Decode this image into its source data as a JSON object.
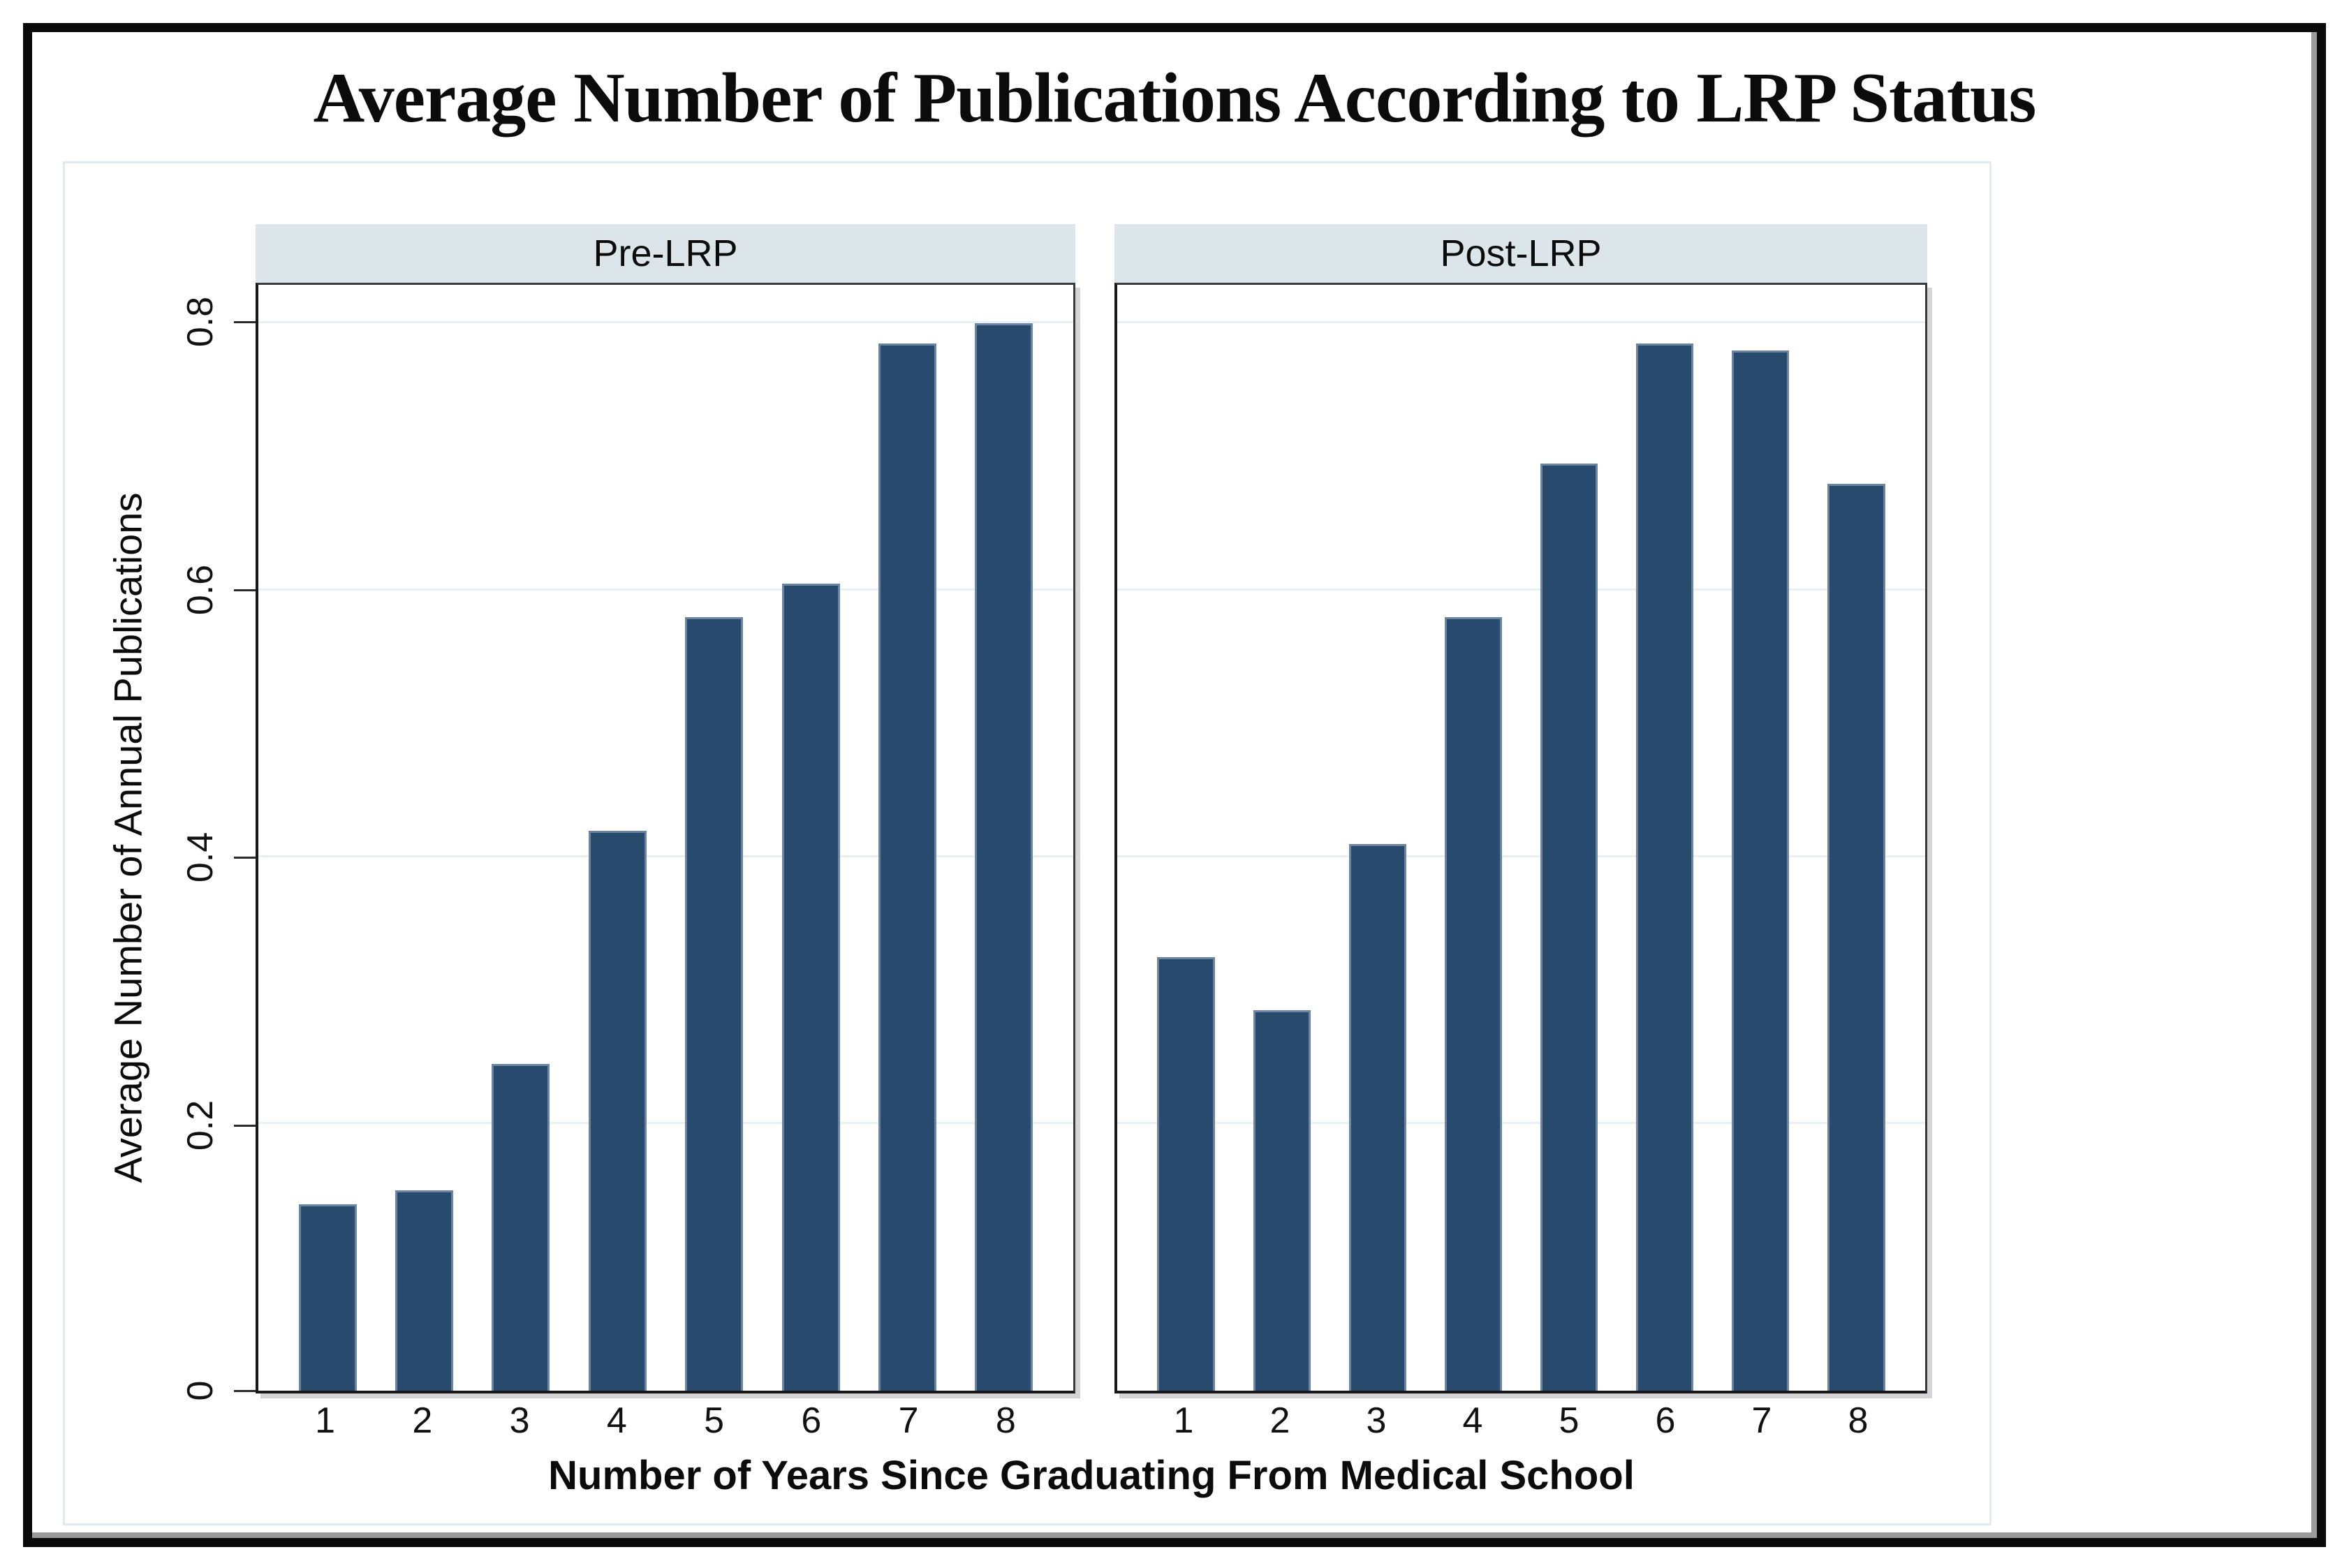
{
  "figure": {
    "title": "Average Number of Publications According to LRP Status"
  },
  "chart_data": {
    "type": "bar",
    "title": "Average Number of Publications According to LRP Status",
    "xlabel": "Number of Years Since Graduating From Medical School",
    "ylabel": "Average Number of Annual Publications",
    "categories": [
      "1",
      "2",
      "3",
      "4",
      "5",
      "6",
      "7",
      "8"
    ],
    "panels": [
      {
        "label": "Pre-LRP",
        "values": [
          0.14,
          0.15,
          0.245,
          0.42,
          0.58,
          0.605,
          0.785,
          0.8
        ]
      },
      {
        "label": "Post-LRP",
        "values": [
          0.325,
          0.285,
          0.41,
          0.58,
          0.695,
          0.785,
          0.78,
          0.68
        ]
      }
    ],
    "y_ticks": [
      {
        "value": 0.0,
        "label": "0"
      },
      {
        "value": 0.2,
        "label": "0.2"
      },
      {
        "value": 0.4,
        "label": "0.4"
      },
      {
        "value": 0.6,
        "label": "0.6"
      },
      {
        "value": 0.8,
        "label": "0.8"
      }
    ],
    "ylim": [
      0,
      0.829
    ],
    "grid": true,
    "legend": "none",
    "colors": {
      "bar_fill": "#274a6d",
      "bar_outline": "#6d84a0",
      "panel_header_fill": "#dce6ea",
      "gridline": "#e9f0f3",
      "axis": "#19191b",
      "frame": "#0a0a0a"
    }
  }
}
